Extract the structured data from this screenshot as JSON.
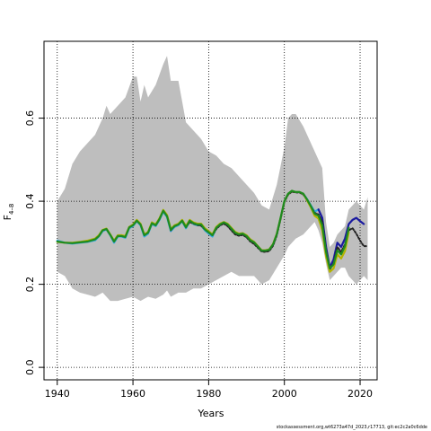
{
  "chart_data": {
    "type": "line",
    "title": "",
    "xlabel": "Years",
    "ylabel": "F",
    "ylabel_subscript": "4–8",
    "xlim": [
      1936.5,
      2024.5
    ],
    "ylim": [
      -0.03,
      0.785
    ],
    "xticks": [
      1940,
      1960,
      1980,
      2000,
      2020
    ],
    "yticks": [
      0.0,
      0.2,
      0.4,
      0.6
    ],
    "xtick_labels": [
      "1940",
      "1960",
      "1980",
      "2000",
      "2020"
    ],
    "ytick_labels": [
      "0.0",
      "0.2",
      "0.4",
      "0.6"
    ],
    "grid": true,
    "grid_style": "dotted",
    "confidence_band": {
      "color": "#bebebe",
      "x": [
        1940,
        1942,
        1944,
        1946,
        1948,
        1950,
        1952,
        1953,
        1954,
        1956,
        1958,
        1960,
        1961,
        1962,
        1963,
        1964,
        1966,
        1968,
        1969,
        1970,
        1972,
        1974,
        1976,
        1978,
        1980,
        1982,
        1984,
        1986,
        1988,
        1990,
        1992,
        1994,
        1996,
        1998,
        2000,
        2001,
        2002,
        2003,
        2005,
        2007,
        2008,
        2009,
        2010,
        2011,
        2012,
        2013,
        2014,
        2015,
        2016,
        2017,
        2018,
        2019,
        2020,
        2021,
        2022
      ],
      "upper": [
        0.4,
        0.43,
        0.49,
        0.52,
        0.54,
        0.56,
        0.6,
        0.63,
        0.61,
        0.63,
        0.65,
        0.7,
        0.7,
        0.64,
        0.68,
        0.65,
        0.68,
        0.73,
        0.75,
        0.69,
        0.69,
        0.59,
        0.57,
        0.55,
        0.52,
        0.51,
        0.49,
        0.48,
        0.46,
        0.44,
        0.42,
        0.39,
        0.38,
        0.44,
        0.53,
        0.6,
        0.61,
        0.61,
        0.58,
        0.54,
        0.52,
        0.5,
        0.48,
        0.35,
        0.29,
        0.3,
        0.32,
        0.33,
        0.34,
        0.38,
        0.39,
        0.4,
        0.39,
        0.38,
        0.41
      ],
      "lower": [
        0.23,
        0.22,
        0.19,
        0.18,
        0.175,
        0.17,
        0.18,
        0.17,
        0.16,
        0.16,
        0.165,
        0.17,
        0.165,
        0.16,
        0.165,
        0.17,
        0.165,
        0.175,
        0.185,
        0.17,
        0.18,
        0.18,
        0.19,
        0.19,
        0.2,
        0.21,
        0.22,
        0.23,
        0.22,
        0.22,
        0.22,
        0.2,
        0.21,
        0.24,
        0.27,
        0.29,
        0.3,
        0.31,
        0.32,
        0.34,
        0.35,
        0.33,
        0.3,
        0.25,
        0.21,
        0.22,
        0.23,
        0.24,
        0.24,
        0.22,
        0.21,
        0.2,
        0.21,
        0.22,
        0.21
      ]
    },
    "series": [
      {
        "color": "#2ea8e0",
        "x": [
          1940,
          1942,
          1944,
          1946,
          1948,
          1950,
          1951,
          1952,
          1953,
          1954,
          1955,
          1956,
          1957,
          1958,
          1959,
          1960,
          1961,
          1962,
          1963,
          1964,
          1965,
          1966,
          1967,
          1968,
          1969,
          1970,
          1971,
          1972,
          1973,
          1974,
          1975,
          1976,
          1977,
          1978,
          1979,
          1980,
          1981,
          1982,
          1983,
          1984,
          1985,
          1986,
          1987,
          1988,
          1989,
          1990,
          1991,
          1992,
          1993,
          1994,
          1995,
          1996,
          1997,
          1998,
          1999,
          2000,
          2001,
          2002,
          2003,
          2004,
          2005,
          2006,
          2007,
          2008,
          2009
        ],
        "y": [
          0.305,
          0.3,
          0.298,
          0.3,
          0.302,
          0.306,
          0.315,
          0.328,
          0.332,
          0.318,
          0.3,
          0.315,
          0.315,
          0.312,
          0.335,
          0.34,
          0.352,
          0.342,
          0.315,
          0.322,
          0.345,
          0.34,
          0.355,
          0.375,
          0.362,
          0.328,
          0.338,
          0.342,
          0.352,
          0.335,
          0.352,
          0.345,
          0.342,
          0.342,
          0.33,
          0.322,
          0.315,
          0.335,
          0.342,
          0.348,
          0.342,
          0.332,
          0.322,
          0.318,
          0.32,
          0.315,
          0.305,
          0.3,
          0.29,
          0.28,
          0.28,
          0.282,
          0.295,
          0.32,
          0.36,
          0.4,
          0.418,
          0.425,
          0.422,
          0.422,
          0.418,
          0.405,
          0.39,
          0.375,
          0.38
        ]
      },
      {
        "color": "#1a1aa0",
        "x": [
          2009,
          2010,
          2011,
          2012,
          2013,
          2014,
          2015,
          2016,
          2017,
          2018,
          2019,
          2020,
          2021
        ],
        "y": [
          0.38,
          0.36,
          0.29,
          0.24,
          0.26,
          0.3,
          0.29,
          0.31,
          0.345,
          0.355,
          0.36,
          0.352,
          0.345
        ]
      },
      {
        "color": "#222222",
        "dashed": true,
        "x": [
          1970,
          1971,
          1972,
          1973,
          1974,
          1975,
          1976,
          1977,
          1978,
          1979,
          1980,
          1981,
          1982,
          1983,
          1984,
          1985,
          1986,
          1987,
          1988,
          1989,
          1990,
          1991,
          1992,
          1993,
          1994,
          1995,
          1996,
          1997,
          1998,
          1999,
          2000,
          2001,
          2002,
          2003,
          2004,
          2005,
          2006,
          2007,
          2008,
          2009,
          2010,
          2011,
          2012,
          2013,
          2014,
          2015,
          2016,
          2017,
          2018,
          2019,
          2020,
          2021,
          2022
        ],
        "y": [
          0.33,
          0.34,
          0.345,
          0.352,
          0.338,
          0.35,
          0.346,
          0.343,
          0.341,
          0.332,
          0.325,
          0.318,
          0.333,
          0.342,
          0.346,
          0.34,
          0.33,
          0.32,
          0.317,
          0.319,
          0.313,
          0.303,
          0.297,
          0.288,
          0.279,
          0.278,
          0.28,
          0.293,
          0.318,
          0.357,
          0.398,
          0.416,
          0.423,
          0.421,
          0.421,
          0.416,
          0.403,
          0.388,
          0.372,
          0.368,
          0.35,
          0.282,
          0.236,
          0.25,
          0.29,
          0.278,
          0.296,
          0.33,
          0.335,
          0.322,
          0.305,
          0.292,
          0.292
        ]
      },
      {
        "color": "#b4b400",
        "x": [
          1940,
          1942,
          1944,
          1946,
          1948,
          1950,
          1951,
          1952,
          1953,
          1954,
          1955,
          1956,
          1957,
          1958,
          1959,
          1960,
          1961,
          1962,
          1963,
          1964,
          1965,
          1966,
          1967,
          1968,
          1969,
          1970,
          1971,
          1972,
          1973,
          1974,
          1975,
          1976,
          1977,
          1978,
          1979,
          1980,
          1981,
          1982,
          1983,
          1984,
          1985,
          1986,
          1987,
          1988,
          1989,
          1990,
          1991,
          1992,
          1993,
          1994,
          1995,
          1996,
          1997,
          1998,
          1999,
          2000,
          2001,
          2002,
          2003,
          2004,
          2005,
          2006,
          2007,
          2008,
          2009,
          2010,
          2011,
          2012,
          2013,
          2014,
          2015,
          2016,
          2017
        ],
        "y": [
          0.302,
          0.3,
          0.3,
          0.302,
          0.305,
          0.31,
          0.318,
          0.331,
          0.334,
          0.32,
          0.305,
          0.318,
          0.318,
          0.316,
          0.338,
          0.344,
          0.355,
          0.346,
          0.32,
          0.326,
          0.349,
          0.344,
          0.359,
          0.379,
          0.367,
          0.333,
          0.342,
          0.346,
          0.355,
          0.34,
          0.355,
          0.349,
          0.346,
          0.346,
          0.335,
          0.328,
          0.32,
          0.338,
          0.346,
          0.35,
          0.346,
          0.336,
          0.326,
          0.322,
          0.323,
          0.318,
          0.308,
          0.302,
          0.292,
          0.282,
          0.282,
          0.284,
          0.297,
          0.322,
          0.36,
          0.4,
          0.418,
          0.425,
          0.422,
          0.422,
          0.418,
          0.402,
          0.385,
          0.365,
          0.358,
          0.33,
          0.268,
          0.23,
          0.238,
          0.272,
          0.262,
          0.28,
          0.325
        ]
      },
      {
        "color": "#1f8a1f",
        "x": [
          1940,
          1942,
          1944,
          1946,
          1948,
          1950,
          1951,
          1952,
          1953,
          1954,
          1955,
          1956,
          1957,
          1958,
          1959,
          1960,
          1961,
          1962,
          1963,
          1964,
          1965,
          1966,
          1967,
          1968,
          1969,
          1970,
          1971,
          1972,
          1973,
          1974,
          1975,
          1976,
          1977,
          1978,
          1979,
          1980,
          1981,
          1982,
          1983,
          1984,
          1985,
          1986,
          1987,
          1988,
          1989,
          1990,
          1991,
          1992,
          1993,
          1994,
          1995,
          1996,
          1997,
          1998,
          1999,
          2000,
          2001,
          2002,
          2003,
          2004,
          2005,
          2006,
          2007,
          2008,
          2009,
          2010,
          2011,
          2012,
          2013,
          2014,
          2015,
          2016,
          2017
        ],
        "y": [
          0.303,
          0.3,
          0.299,
          0.301,
          0.303,
          0.308,
          0.316,
          0.33,
          0.333,
          0.319,
          0.303,
          0.316,
          0.316,
          0.314,
          0.337,
          0.342,
          0.353,
          0.344,
          0.318,
          0.324,
          0.347,
          0.342,
          0.357,
          0.377,
          0.364,
          0.331,
          0.34,
          0.344,
          0.353,
          0.337,
          0.353,
          0.347,
          0.344,
          0.344,
          0.332,
          0.325,
          0.318,
          0.336,
          0.344,
          0.349,
          0.344,
          0.334,
          0.324,
          0.32,
          0.322,
          0.316,
          0.306,
          0.301,
          0.291,
          0.281,
          0.281,
          0.283,
          0.296,
          0.321,
          0.36,
          0.4,
          0.418,
          0.425,
          0.422,
          0.422,
          0.418,
          0.404,
          0.388,
          0.37,
          0.365,
          0.342,
          0.278,
          0.238,
          0.248,
          0.282,
          0.272,
          0.292,
          0.336
        ]
      }
    ]
  },
  "footer_text": "stockassessment.org,wt6273a47d_2023,r17713, git:ec2c2a0c6dde"
}
